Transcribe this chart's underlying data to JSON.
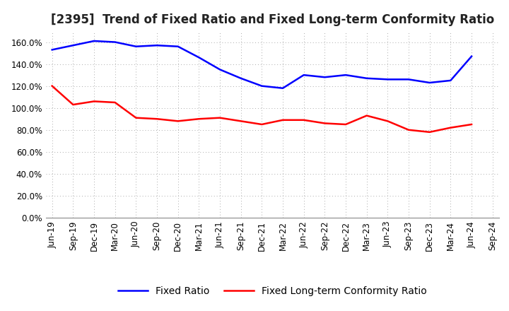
{
  "title": "[2395]  Trend of Fixed Ratio and Fixed Long-term Conformity Ratio",
  "x_labels": [
    "Jun-19",
    "Sep-19",
    "Dec-19",
    "Mar-20",
    "Jun-20",
    "Sep-20",
    "Dec-20",
    "Mar-21",
    "Jun-21",
    "Sep-21",
    "Dec-21",
    "Mar-22",
    "Jun-22",
    "Sep-22",
    "Dec-22",
    "Mar-23",
    "Jun-23",
    "Sep-23",
    "Dec-23",
    "Mar-24",
    "Jun-24",
    "Sep-24"
  ],
  "fixed_ratio": [
    1.53,
    1.57,
    1.61,
    1.6,
    1.56,
    1.57,
    1.56,
    1.46,
    1.35,
    1.27,
    1.2,
    1.18,
    1.3,
    1.28,
    1.3,
    1.27,
    1.26,
    1.26,
    1.23,
    1.25,
    1.47,
    null
  ],
  "fixed_lt_ratio": [
    1.2,
    1.03,
    1.06,
    1.05,
    0.91,
    0.9,
    0.88,
    0.9,
    0.91,
    0.88,
    0.85,
    0.89,
    0.89,
    0.86,
    0.85,
    0.93,
    0.88,
    0.8,
    0.78,
    0.82,
    0.85,
    null
  ],
  "fixed_ratio_color": "#0000ff",
  "fixed_lt_ratio_color": "#ff0000",
  "ylim": [
    0.0,
    1.7
  ],
  "yticks": [
    0.0,
    0.2,
    0.4,
    0.6,
    0.8,
    1.0,
    1.2,
    1.4,
    1.6
  ],
  "grid_color": "#aaaaaa",
  "bg_color": "#ffffff",
  "legend_fixed_ratio": "Fixed Ratio",
  "legend_fixed_lt_ratio": "Fixed Long-term Conformity Ratio",
  "title_fontsize": 12,
  "axis_fontsize": 8.5,
  "legend_fontsize": 10,
  "line_width": 1.8
}
